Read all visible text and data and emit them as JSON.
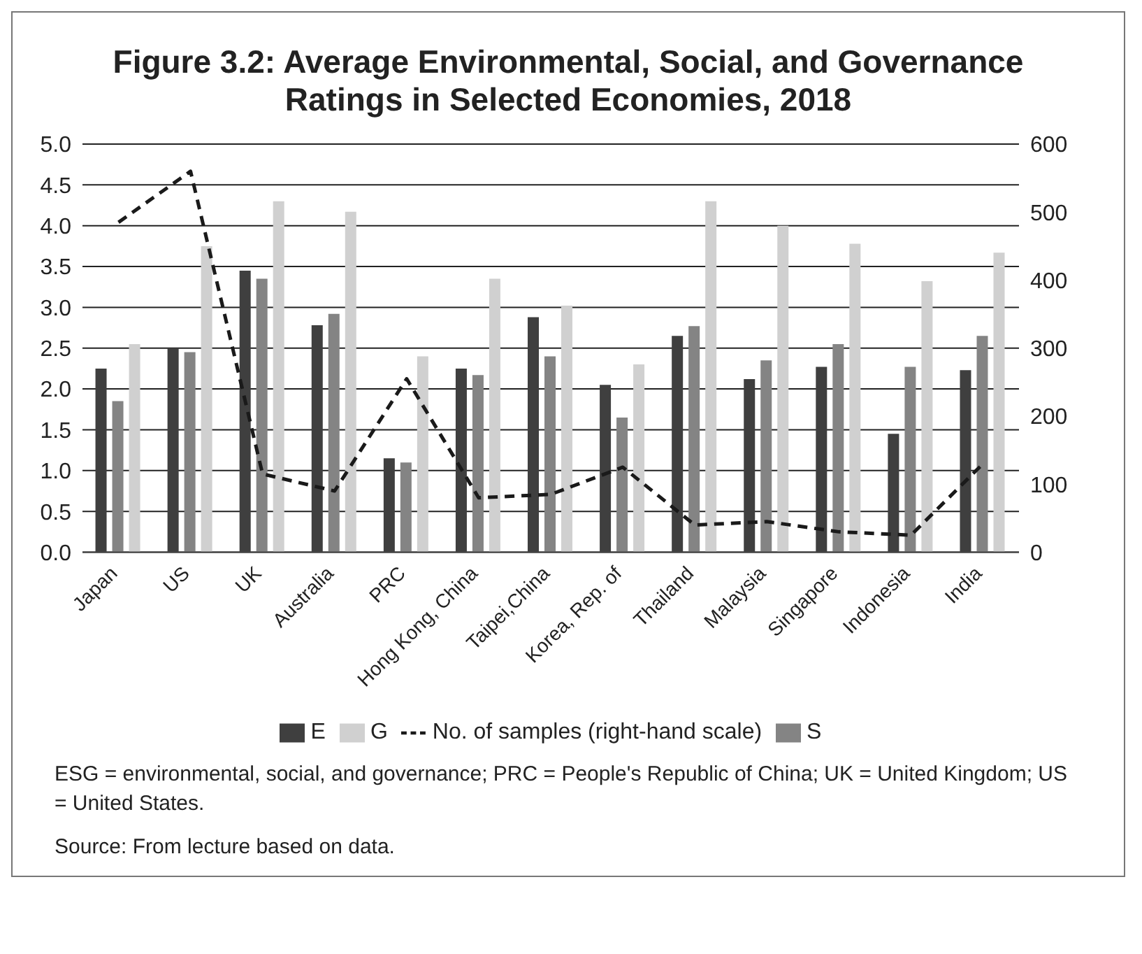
{
  "chart_data": {
    "type": "bar",
    "title": "Figure 3.2: Average Environmental, Social, and Governance Ratings in Selected Economies, 2018",
    "categories": [
      "Japan",
      "US",
      "UK",
      "Australia",
      "PRC",
      "Hong Kong, China",
      "Taipei,China",
      "Korea, Rep. of",
      "Thailand",
      "Malaysia",
      "Singapore",
      "Indonesia",
      "India"
    ],
    "series": [
      {
        "name": "E",
        "color": "#3f3f3f",
        "values": [
          2.25,
          2.5,
          3.45,
          2.78,
          1.15,
          2.25,
          2.88,
          2.05,
          2.65,
          2.12,
          2.27,
          1.45,
          2.23
        ]
      },
      {
        "name": "S",
        "color": "#848484",
        "values": [
          1.85,
          2.45,
          3.35,
          2.92,
          1.1,
          2.17,
          2.4,
          1.65,
          2.77,
          2.35,
          2.55,
          2.27,
          2.65
        ]
      },
      {
        "name": "G",
        "color": "#d0d0d0",
        "values": [
          2.55,
          3.75,
          4.3,
          4.17,
          2.4,
          3.35,
          3.02,
          2.3,
          4.3,
          4.0,
          3.78,
          3.32,
          3.67
        ]
      },
      {
        "name": "No. of samples (right-hand scale)",
        "type": "line",
        "axis": "y2",
        "color": "#1a1a1a",
        "line_style": "dashed",
        "marker": "none",
        "values": [
          485,
          560,
          115,
          90,
          255,
          80,
          85,
          125,
          40,
          45,
          30,
          25,
          130
        ]
      }
    ],
    "ylim": [
      0,
      5
    ],
    "yticks": [
      {
        "value": 0,
        "label": "0.0"
      },
      0.5,
      {
        "value": 1,
        "label": "1.0"
      },
      1.5,
      {
        "value": 2,
        "label": "2.0"
      },
      2.5,
      {
        "value": 3,
        "label": "3.0"
      },
      3.5,
      {
        "value": 4,
        "label": "4.0"
      },
      4.5,
      {
        "value": 5,
        "label": "5.0"
      }
    ],
    "y2lim": [
      0,
      600
    ],
    "y2ticks": [
      0,
      100,
      200,
      300,
      400,
      500,
      600
    ],
    "grid": "y",
    "legend": "bottom",
    "annotations": [
      "ESG = environmental, social, and governance; PRC = People's Republic of China; UK = United Kingdom; US = United States.",
      "Source: From lecture based on data."
    ]
  }
}
